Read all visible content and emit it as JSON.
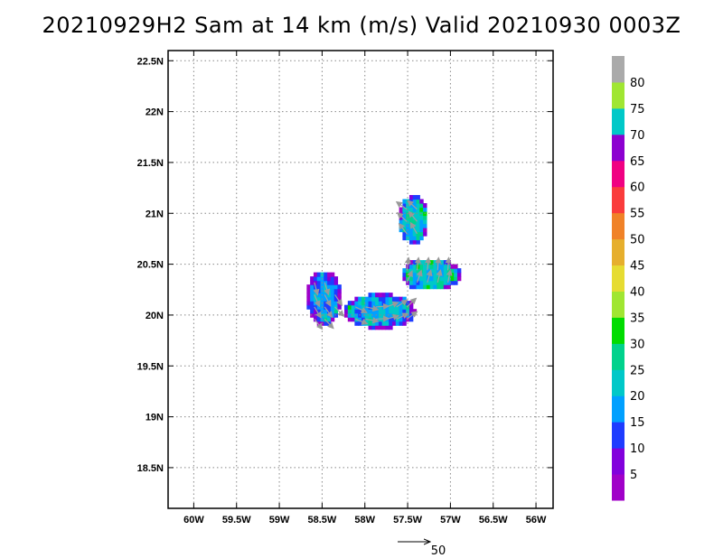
{
  "title": "20210929H2 Sam at 14 km (m/s) Valid 20210930 0003Z",
  "chart_data": {
    "type": "heatmap",
    "title": "20210929H2 Sam at 14 km (m/s) Valid 20210930 0003Z",
    "x_ticks": [
      "60W",
      "59.5W",
      "59W",
      "58.5W",
      "58W",
      "57.5W",
      "57W",
      "56.5W",
      "56W"
    ],
    "y_ticks": [
      "22.5N",
      "22N",
      "21.5N",
      "21N",
      "20.5N",
      "20N",
      "19.5N",
      "19N",
      "18.5N"
    ],
    "x_range": [
      -60.3,
      -55.8
    ],
    "y_range": [
      18.1,
      22.6
    ],
    "grid": true,
    "colorbar": {
      "labels": [
        "5",
        "10",
        "15",
        "20",
        "25",
        "30",
        "35",
        "40",
        "45",
        "50",
        "55",
        "60",
        "65",
        "70",
        "75",
        "80"
      ],
      "colors": [
        "#a000c8",
        "#8200dc",
        "#1e3cff",
        "#00a0ff",
        "#00c8c8",
        "#00d28c",
        "#00dc00",
        "#a0e632",
        "#e6dc32",
        "#e6af2d",
        "#f08228",
        "#fa3c3c",
        "#f00082",
        "#8c00d0",
        "#00c8c8",
        "#a0e632",
        "#aaaaaa"
      ]
    },
    "reference_vector": {
      "label": "50",
      "value": 50
    },
    "regions": [
      {
        "name": "northeast-patch",
        "lon": -57.45,
        "lat": 20.92,
        "rx": 0.17,
        "ry": 0.24,
        "speed": 28
      },
      {
        "name": "west-patch",
        "lon": -58.5,
        "lat": 20.15,
        "rx": 0.2,
        "ry": 0.27,
        "speed": 22
      },
      {
        "name": "east-band",
        "lon": -57.25,
        "lat": 20.38,
        "rx": 0.35,
        "ry": 0.16,
        "speed": 27
      },
      {
        "name": "central-band",
        "lon": -57.85,
        "lat": 20.02,
        "rx": 0.42,
        "ry": 0.17,
        "speed": 24
      }
    ]
  }
}
